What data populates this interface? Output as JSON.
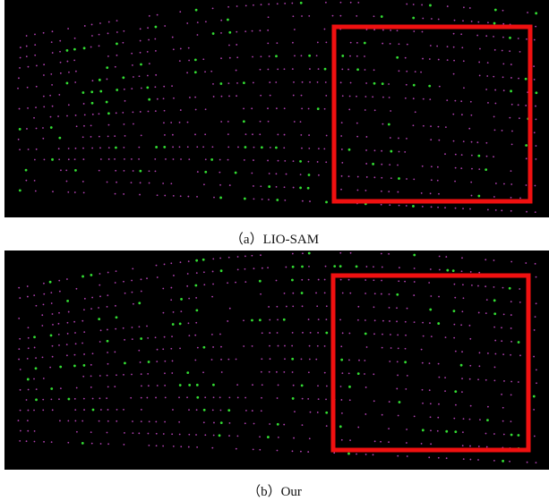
{
  "figure": {
    "panels": [
      {
        "caption": "（a）LIO-SAM"
      },
      {
        "caption": "（b）Our"
      }
    ]
  }
}
